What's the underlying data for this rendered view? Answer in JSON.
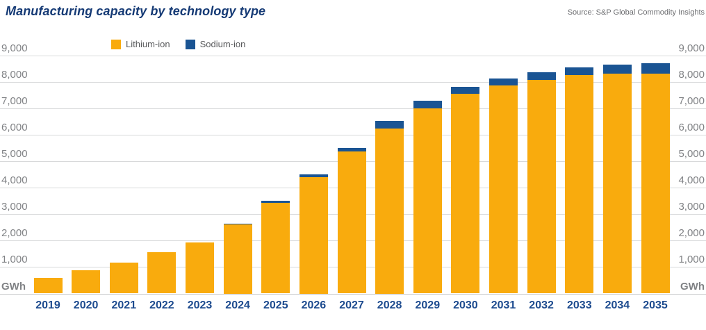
{
  "header": {
    "title": "Manufacturing capacity by technology type",
    "source": "Source: S&P Global Commodity Insights"
  },
  "legend": {
    "items": [
      {
        "label": "Lithium-ion",
        "color": "#f9ab0d"
      },
      {
        "label": "Sodium-ion",
        "color": "#1a5493"
      }
    ]
  },
  "axis": {
    "unit_label": "GWh",
    "ticks": [
      9000,
      8000,
      7000,
      6000,
      5000,
      4000,
      3000,
      2000,
      1000
    ]
  },
  "colors": {
    "lithium": "#f9ab0d",
    "sodium": "#1a5493",
    "navy_text": "#1d4b8f",
    "title_navy": "#153a75",
    "gridline": "#d8d9da",
    "gray_text": "#808285"
  },
  "chart_data": {
    "type": "bar",
    "stacked": true,
    "title": "Manufacturing capacity by technology type",
    "ylabel": "GWh",
    "ylim": [
      0,
      9000
    ],
    "grid": true,
    "legend_position": "top-left",
    "categories": [
      "2019",
      "2020",
      "2021",
      "2022",
      "2023",
      "2024",
      "2025",
      "2026",
      "2027",
      "2028",
      "2029",
      "2030",
      "2031",
      "2032",
      "2033",
      "2034",
      "2035"
    ],
    "series": [
      {
        "name": "Lithium-ion",
        "color": "#f9ab0d",
        "values": [
          580,
          890,
          1160,
          1550,
          1930,
          2600,
          3410,
          4400,
          5370,
          6240,
          6980,
          7540,
          7850,
          8060,
          8240,
          8310,
          8300
        ]
      },
      {
        "name": "Sodium-ion",
        "color": "#1a5493",
        "values": [
          0,
          0,
          0,
          0,
          0,
          50,
          100,
          100,
          120,
          280,
          300,
          260,
          260,
          290,
          290,
          330,
          390
        ]
      }
    ]
  }
}
